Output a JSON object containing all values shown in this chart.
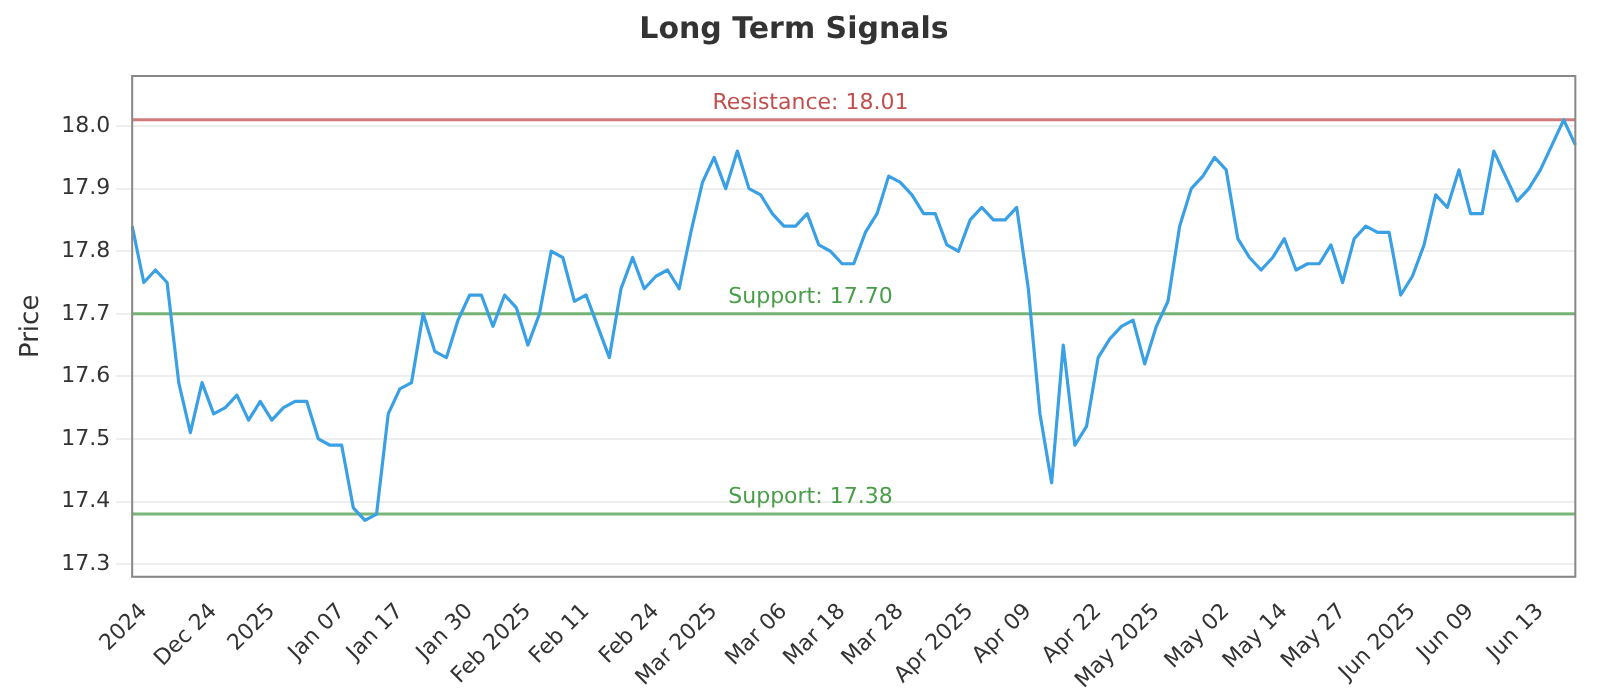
{
  "chart_data": {
    "type": "line",
    "title": "Long Term Signals",
    "ylabel": "Price",
    "categories": [
      null,
      "2024",
      null,
      null,
      null,
      null,
      null,
      "Dec 24",
      null,
      null,
      null,
      null,
      "2025",
      null,
      null,
      null,
      null,
      null,
      "Jan 07",
      null,
      null,
      null,
      null,
      "Jan 17",
      null,
      null,
      null,
      null,
      null,
      "Jan 30",
      null,
      null,
      null,
      null,
      "Feb 2025",
      null,
      null,
      null,
      null,
      "Feb 11",
      null,
      null,
      null,
      null,
      null,
      "Feb 24",
      null,
      null,
      null,
      null,
      "Mar 2025",
      null,
      null,
      null,
      null,
      null,
      "Mar 06",
      null,
      null,
      null,
      null,
      "Mar 18",
      null,
      null,
      null,
      null,
      "Mar 28",
      null,
      null,
      null,
      null,
      null,
      "Apr 2025",
      null,
      null,
      null,
      null,
      "Apr 09",
      null,
      null,
      null,
      null,
      null,
      "Apr 22",
      null,
      null,
      null,
      null,
      "May 2025",
      null,
      null,
      null,
      null,
      null,
      "May 02",
      null,
      null,
      null,
      null,
      "May 14",
      null,
      null,
      null,
      null,
      "May 27",
      null,
      null,
      null,
      null,
      null,
      "Jun 2025",
      null,
      null,
      null,
      null,
      "Jun 09",
      null,
      null,
      null,
      null,
      null,
      "Jun 13",
      null,
      null,
      null
    ],
    "series": [
      {
        "color": "#3aa0e6",
        "values": [
          17.84,
          17.75,
          17.77,
          17.75,
          17.59,
          17.51,
          17.59,
          17.54,
          17.55,
          17.57,
          17.53,
          17.56,
          17.53,
          17.55,
          17.56,
          17.56,
          17.5,
          17.49,
          17.49,
          17.39,
          17.37,
          17.38,
          17.54,
          17.58,
          17.59,
          17.7,
          17.64,
          17.63,
          17.69,
          17.73,
          17.73,
          17.68,
          17.73,
          17.71,
          17.65,
          17.7,
          17.8,
          17.79,
          17.72,
          17.73,
          17.68,
          17.63,
          17.74,
          17.79,
          17.74,
          17.76,
          17.77,
          17.74,
          17.83,
          17.91,
          17.95,
          17.9,
          17.96,
          17.9,
          17.89,
          17.86,
          17.84,
          17.84,
          17.86,
          17.81,
          17.8,
          17.78,
          17.78,
          17.83,
          17.86,
          17.92,
          17.91,
          17.89,
          17.86,
          17.86,
          17.81,
          17.8,
          17.85,
          17.87,
          17.85,
          17.85,
          17.87,
          17.74,
          17.54,
          17.43,
          17.65,
          17.49,
          17.52,
          17.63,
          17.66,
          17.68,
          17.69,
          17.62,
          17.68,
          17.72,
          17.84,
          17.9,
          17.92,
          17.95,
          17.93,
          17.82,
          17.79,
          17.77,
          17.79,
          17.82,
          17.77,
          17.78,
          17.78,
          17.81,
          17.75,
          17.82,
          17.84,
          17.83,
          17.83,
          17.73,
          17.76,
          17.81,
          17.89,
          17.87,
          17.93,
          17.86,
          17.86,
          17.96,
          17.92,
          17.88,
          17.9,
          17.93,
          17.97,
          18.01,
          17.97
        ]
      }
    ],
    "ylim": [
      17.28,
      18.08
    ],
    "yticks": [
      17.3,
      17.4,
      17.5,
      17.6,
      17.7,
      17.8,
      17.9,
      {
        "value": 18,
        "label": "18.0"
      }
    ],
    "grid": "y",
    "marker": "none",
    "line_style": "solid",
    "legend": false,
    "ref_lines": [
      {
        "axis": "y",
        "value": 18.01,
        "label": "Resistance: 18.01",
        "color": "#c0504d"
      },
      {
        "axis": "y",
        "value": 17.7,
        "label": "Support: 17.70",
        "color": "#4a9e4a"
      },
      {
        "axis": "y",
        "value": 17.38,
        "label": "Support: 17.38",
        "color": "#4a9e4a"
      }
    ]
  }
}
